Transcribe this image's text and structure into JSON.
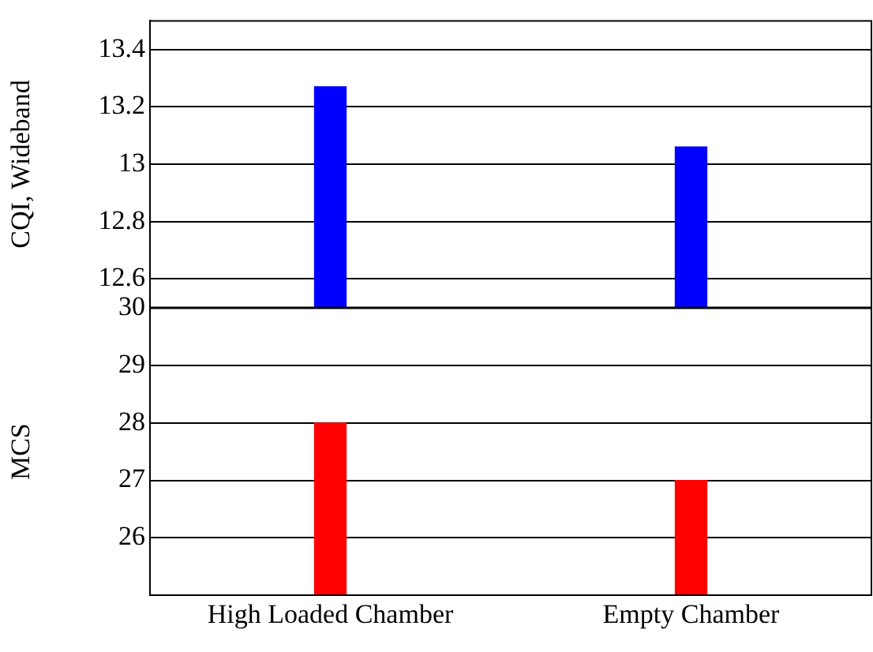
{
  "chart_data": [
    {
      "type": "bar",
      "ylabel": "CQI, Wideband",
      "categories": [
        null,
        null
      ],
      "series": [
        {
          "color": "#0000ff",
          "values": [
            13.27,
            13.06
          ]
        }
      ],
      "ylim": [
        12.5,
        13.5
      ],
      "yticks": [
        12.6,
        12.8,
        13,
        13.2,
        13.4
      ],
      "grid": "y",
      "legend": false,
      "tick_labels": "y"
    },
    {
      "type": "bar",
      "ylabel": "MCS",
      "categories": [
        "High Loaded Chamber",
        "Empty Chamber"
      ],
      "series": [
        {
          "color": "#ff0000",
          "values": [
            28,
            27
          ]
        }
      ],
      "ylim": [
        25,
        30
      ],
      "yticks": [
        26,
        27,
        28,
        29,
        30
      ],
      "grid": "y",
      "legend": false
    }
  ]
}
